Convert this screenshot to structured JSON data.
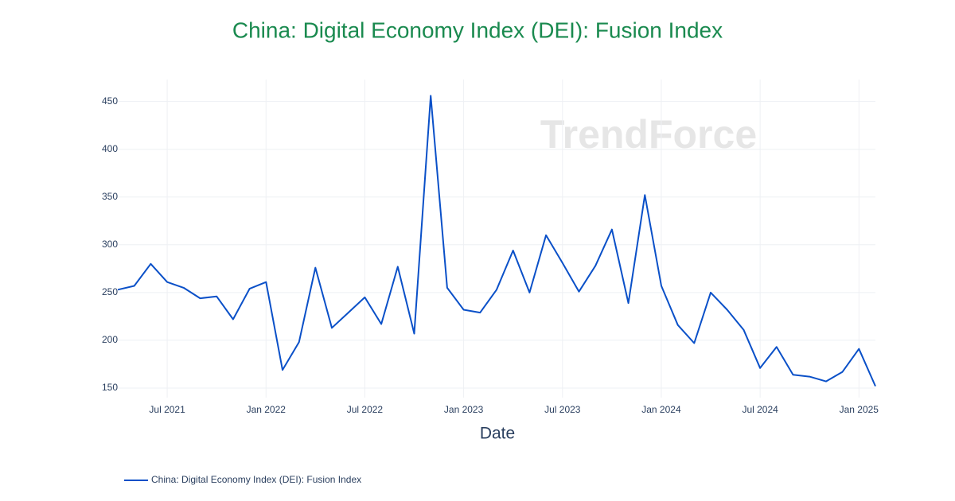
{
  "chart_data": {
    "type": "line",
    "title": "China: Digital Economy Index (DEI): Fusion Index",
    "x_label": "Date",
    "watermark": "TrendForce",
    "x": [
      "2021-04",
      "2021-05",
      "2021-06",
      "2021-07",
      "2021-08",
      "2021-09",
      "2021-10",
      "2021-11",
      "2021-12",
      "2022-01",
      "2022-02",
      "2022-03",
      "2022-04",
      "2022-05",
      "2022-06",
      "2022-07",
      "2022-08",
      "2022-09",
      "2022-10",
      "2022-11",
      "2022-12",
      "2023-01",
      "2023-02",
      "2023-03",
      "2023-04",
      "2023-05",
      "2023-06",
      "2023-07",
      "2023-08",
      "2023-09",
      "2023-10",
      "2023-11",
      "2023-12",
      "2024-01",
      "2024-02",
      "2024-03",
      "2024-04",
      "2024-05",
      "2024-06",
      "2024-07",
      "2024-08",
      "2024-09",
      "2024-10",
      "2024-11",
      "2024-12",
      "2025-01",
      "2025-02"
    ],
    "series": [
      {
        "name": "China: Digital Economy Index (DEI): Fusion Index",
        "color": "#0a50c8",
        "values": [
          253,
          257,
          280,
          261,
          255,
          244,
          246,
          222,
          254,
          261,
          169,
          198,
          276,
          213,
          229,
          245,
          217,
          277,
          207,
          456,
          255,
          232,
          229,
          253,
          294,
          250,
          310,
          281,
          251,
          278,
          316,
          239,
          352,
          257,
          216,
          197,
          250,
          232,
          211,
          171,
          193,
          164,
          162,
          157,
          167,
          191,
          152
        ]
      }
    ],
    "xlim": [
      "2021-04",
      "2025-02"
    ],
    "xticks": [
      {
        "value": "2021-07",
        "label": "Jul 2021"
      },
      {
        "value": "2022-01",
        "label": "Jan 2022"
      },
      {
        "value": "2022-07",
        "label": "Jul 2022"
      },
      {
        "value": "2023-01",
        "label": "Jan 2023"
      },
      {
        "value": "2023-07",
        "label": "Jul 2023"
      },
      {
        "value": "2024-01",
        "label": "Jan 2024"
      },
      {
        "value": "2024-07",
        "label": "Jul 2024"
      },
      {
        "value": "2025-01",
        "label": "Jan 2025"
      }
    ],
    "ylim": [
      140,
      473
    ],
    "yticks": [
      150,
      200,
      250,
      300,
      350,
      400,
      450
    ],
    "grid": true
  }
}
